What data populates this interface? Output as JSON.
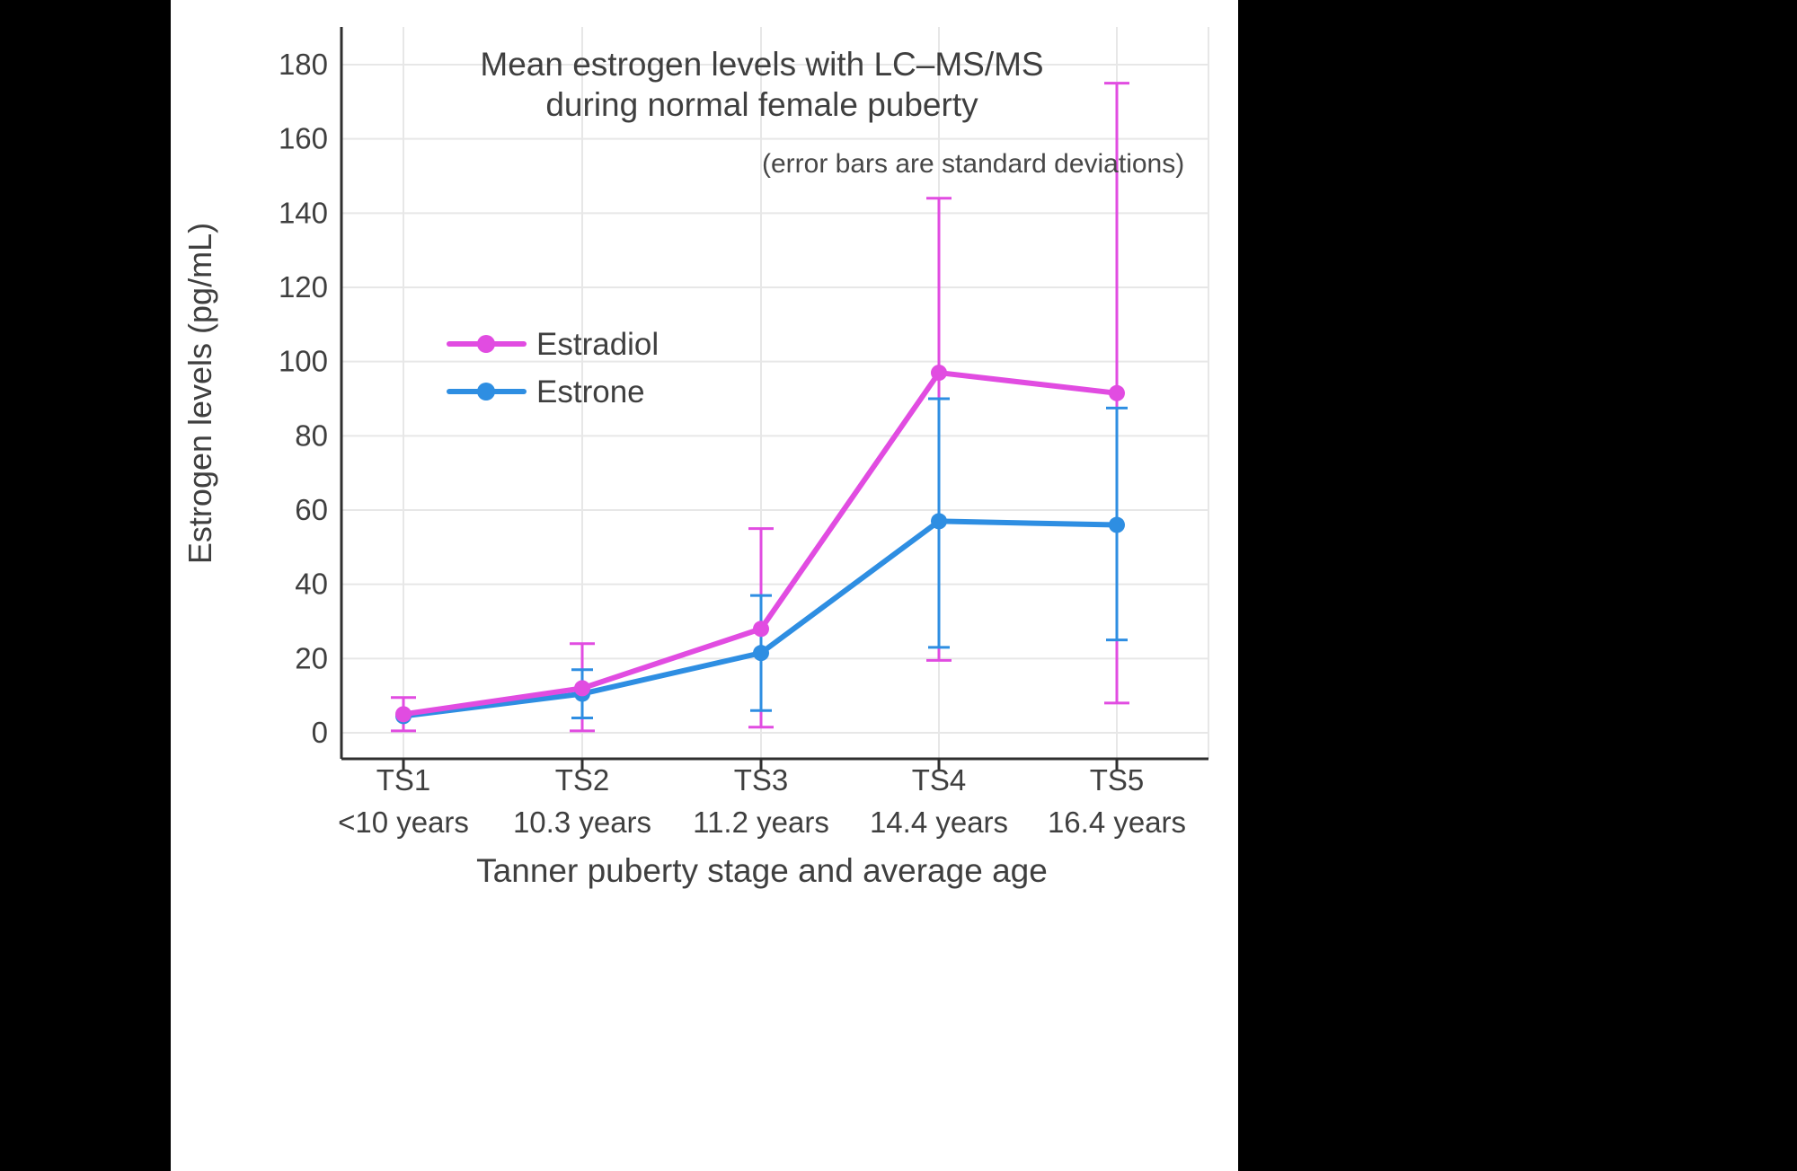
{
  "page": {
    "background_color": "#000000",
    "canvas_color": "#ffffff"
  },
  "chart_data": {
    "type": "line",
    "title_lines": [
      "Mean estrogen levels with LC–MS/MS",
      "during normal female puberty"
    ],
    "subtitle": "(error bars are standard deviations)",
    "xlabel": "Tanner puberty stage and average age",
    "ylabel": "Estrogen levels (pg/mL)",
    "ylim": [
      0,
      190
    ],
    "yticks": [
      0,
      20,
      40,
      60,
      80,
      100,
      120,
      140,
      160,
      180
    ],
    "grid": true,
    "legend_position": "upper-left-inside",
    "categories": [
      "TS1",
      "TS2",
      "TS3",
      "TS4",
      "TS5"
    ],
    "category_sublabels": [
      "<10 years",
      "10.3 years",
      "11.2 years",
      "14.4 years",
      "16.4 years"
    ],
    "series": [
      {
        "name": "Estradiol",
        "color": "#e14ce1",
        "values": [
          5,
          12,
          28,
          97,
          91.5
        ],
        "err_lo": [
          0.5,
          0.5,
          1.5,
          19.5,
          8
        ],
        "err_hi": [
          9.5,
          24,
          55,
          144,
          175
        ]
      },
      {
        "name": "Estrone",
        "color": "#2e8ee2",
        "values": [
          4.5,
          10.5,
          21.5,
          57,
          56
        ],
        "err_lo": [
          null,
          4,
          6,
          23,
          25
        ],
        "err_hi": [
          null,
          17,
          37,
          90,
          87.5
        ]
      }
    ],
    "colors": {
      "axis": "#2f2f2f",
      "grid": "#e7e7e7",
      "text": "#3f3f3f",
      "subtitle_text": "#474747"
    }
  }
}
